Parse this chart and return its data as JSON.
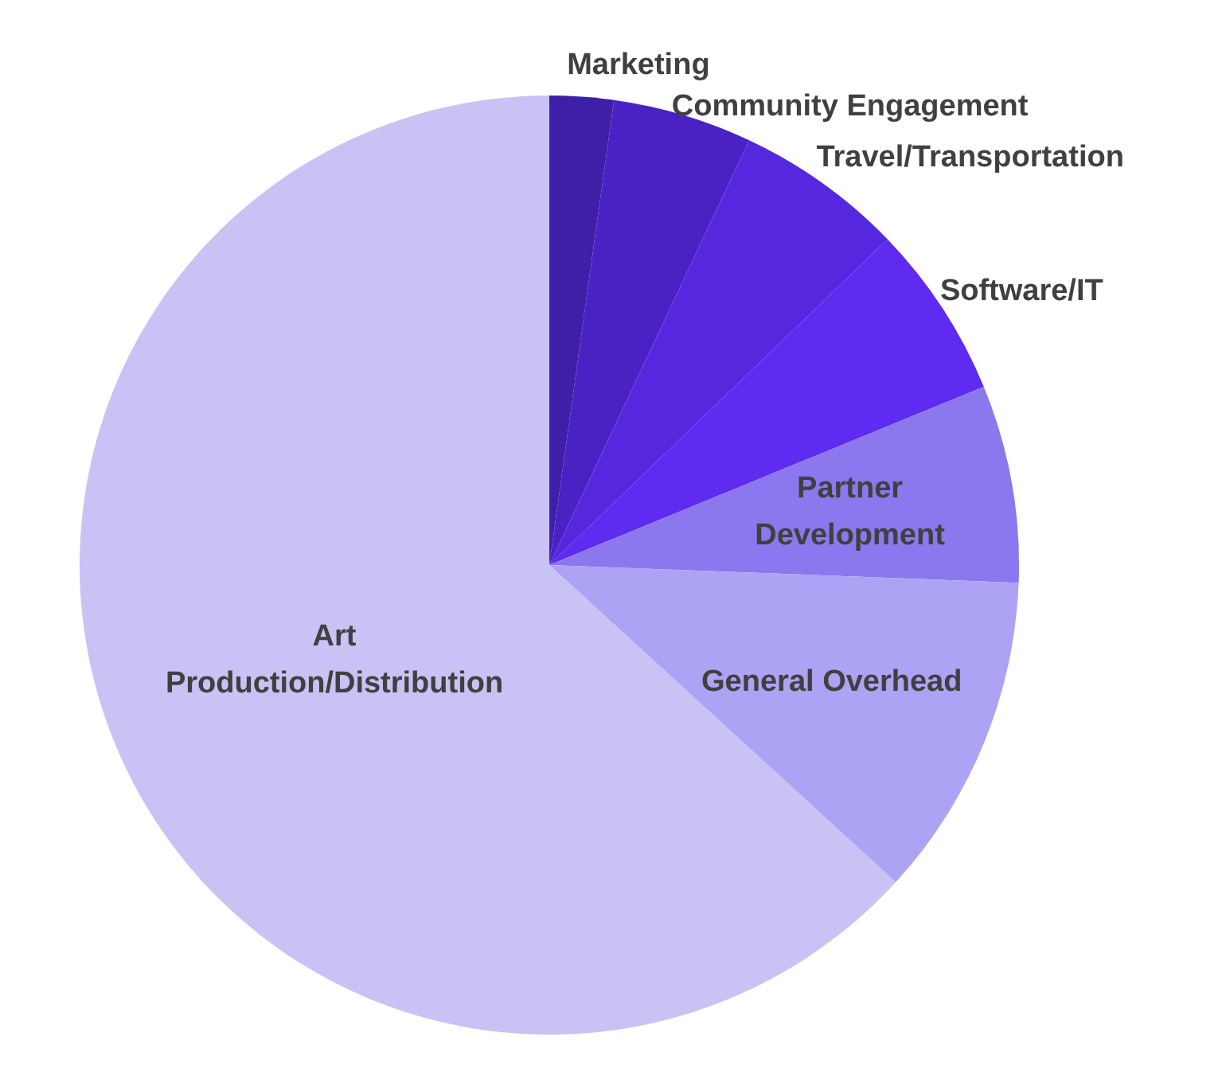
{
  "chart_data": {
    "type": "pie",
    "categories": [
      "Marketing",
      "Community Engagement",
      "Travel/Transportation",
      "Software/IT",
      "Partner Development",
      "General Overhead",
      "Art Production/Distribution"
    ],
    "values": [
      2.2,
      4.8,
      5.8,
      6,
      6.8,
      11.2,
      63.2
    ],
    "colors": [
      "#3d1fa8",
      "#4a22c4",
      "#5528e0",
      "#5f2bf0",
      "#8b78ee",
      "#ada3f5",
      "#c8c2f5"
    ]
  }
}
